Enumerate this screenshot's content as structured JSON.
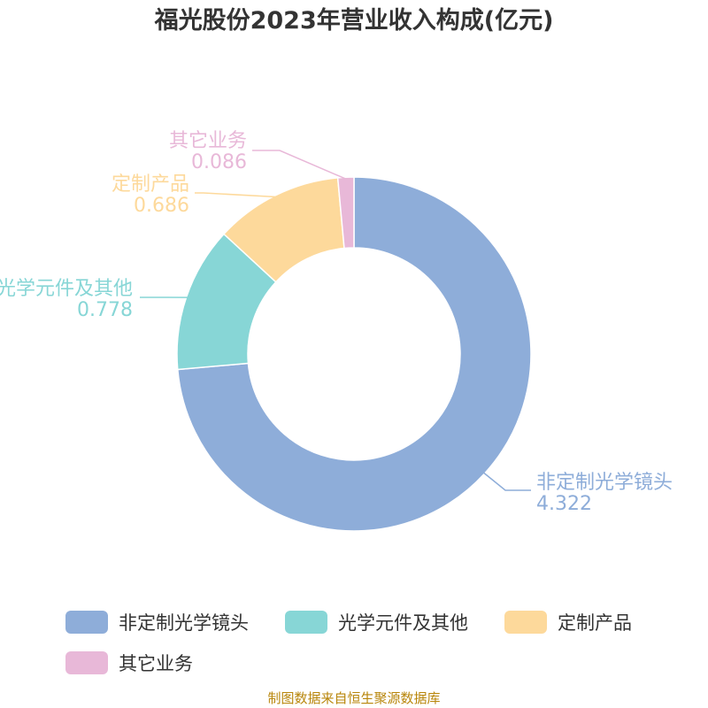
{
  "title": "福光股份2023年营业收入构成(亿元)",
  "source": "制图数据来自恒生聚源数据库",
  "chart_data": {
    "type": "pie",
    "style": "donut",
    "title": "福光股份2023年营业收入构成(亿元)",
    "categories": [
      "非定制光学镜头",
      "光学元件及其他",
      "定制产品",
      "其它业务"
    ],
    "values": [
      4.322,
      0.778,
      0.686,
      0.086
    ],
    "value_labels": [
      "4.322",
      "0.778",
      "0.686",
      "0.086"
    ],
    "colors": [
      "#8eadd9",
      "#87d6d6",
      "#fdd99b",
      "#e8b8d8"
    ],
    "legend_position": "bottom"
  }
}
